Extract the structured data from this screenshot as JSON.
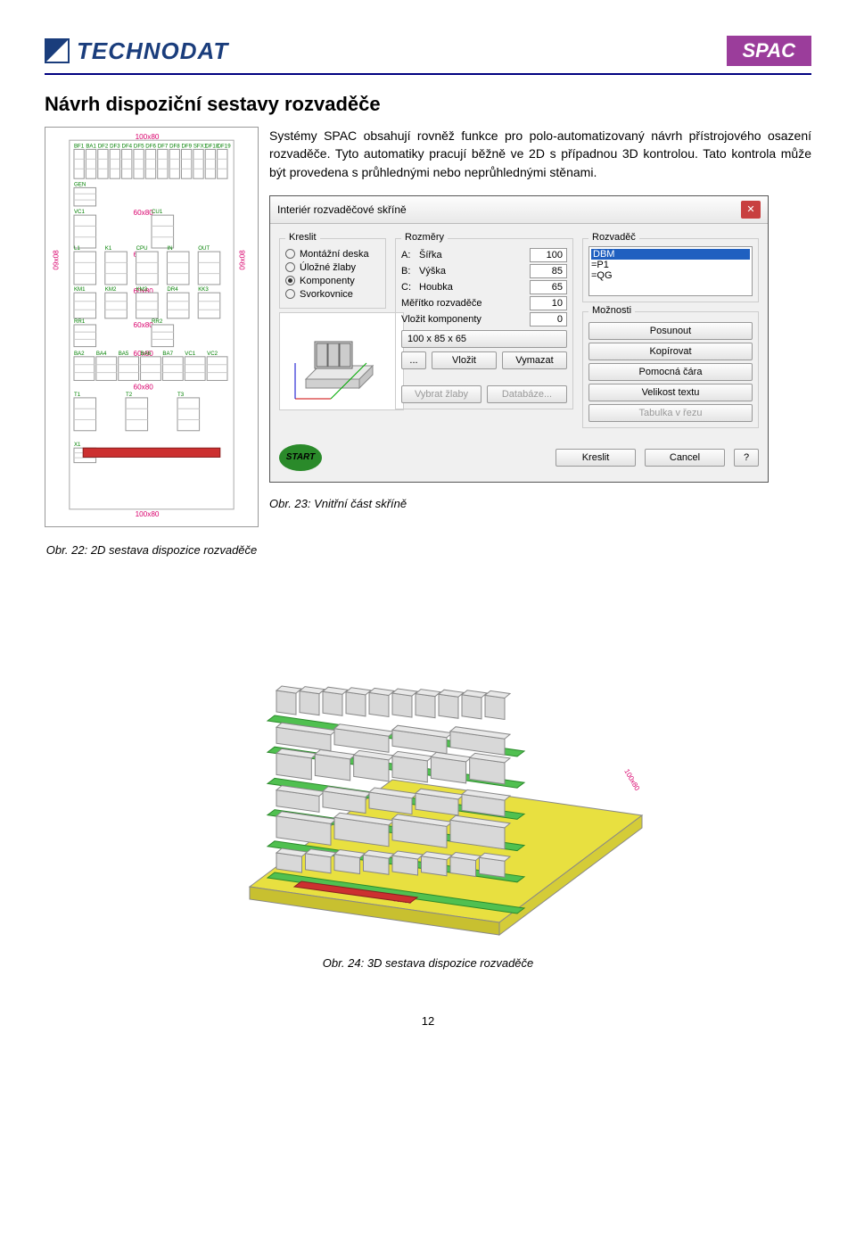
{
  "header": {
    "brand": "TECHNODAT",
    "right_badge": "SPAC"
  },
  "title": "Návrh dispoziční sestavy rozvaděče",
  "paragraph": "Systémy SPAC obsahují rovněž funkce pro polo-automatizovaný návrh přístrojového osazení rozvaděče. Tyto automatiky pracují běžně ve 2D s případnou 3D kontrolou. Tato kontrola může být provedena s průhlednými nebo neprůhlednými stěnami.",
  "diagram2d": {
    "dims": [
      "100x80",
      "60x80",
      "60x80",
      "60x80",
      "60x80",
      "60x80",
      "100x80"
    ],
    "side_dim": "09x08",
    "row_labels": [
      [
        "BF1",
        "BA1",
        "DF2",
        "DF3",
        "DF4",
        "DF5",
        "DF6",
        "DF7",
        "DF8",
        "DF9",
        "SFX1",
        "DF18",
        "DF19"
      ],
      [
        "GEN"
      ],
      [
        "VC1",
        "CU1"
      ],
      [
        "L1",
        "K1",
        "CPU",
        "IN",
        "OUT"
      ],
      [
        "KM1",
        "KM2",
        "KM3",
        "DR4",
        "KK3"
      ],
      [
        "RR1",
        "RR2"
      ],
      [
        "BA2",
        "BA4",
        "BA5",
        "BA6",
        "BA7",
        "VC1",
        "VC2"
      ],
      [
        "T1",
        "T2",
        "T3"
      ],
      [
        "X1"
      ]
    ]
  },
  "dialog": {
    "title": "Interiér rozvaděčové skříně",
    "groups": {
      "kreslit": {
        "label": "Kreslit",
        "options": [
          "Montážní deska",
          "Úložné žlaby",
          "Komponenty",
          "Svorkovnice"
        ],
        "selected": 2
      },
      "rozmery": {
        "label": "Rozměry",
        "rows": [
          {
            "k": "A:",
            "t": "Šířka",
            "v": "100"
          },
          {
            "k": "B:",
            "t": "Výška",
            "v": "85"
          },
          {
            "k": "C:",
            "t": "Houbka",
            "v": "65"
          }
        ],
        "scale_label": "Měřítko rozvaděče",
        "scale": "10",
        "insert_label": "Vložit komponenty",
        "insert": "0",
        "preset": "100 x 85 x 65"
      },
      "rozvadec": {
        "label": "Rozvaděč",
        "items_sel": "DBM",
        "items": [
          "=P1",
          "=QG"
        ]
      },
      "moznosti": {
        "label": "Možnosti",
        "buttons": [
          "Posunout",
          "Kopírovat",
          "Pomocná čára",
          "Velikost textu",
          "Tabulka v řezu"
        ]
      }
    },
    "mid_buttons": {
      "dots": "...",
      "vlozit": "Vložit",
      "vymazat": "Vymazat",
      "vybrat": "Vybrat žlaby",
      "db": "Databáze..."
    },
    "footer": {
      "start": "START",
      "kreslit": "Kreslit",
      "cancel": "Cancel",
      "help": "?"
    }
  },
  "captions": {
    "c22": "Obr. 22: 2D sestava dispozice rozvaděče",
    "c23": "Obr. 23: Vnitřní část skříně",
    "c24": "Obr. 24: 3D sestava dispozice rozvaděče"
  },
  "page_number": "12"
}
